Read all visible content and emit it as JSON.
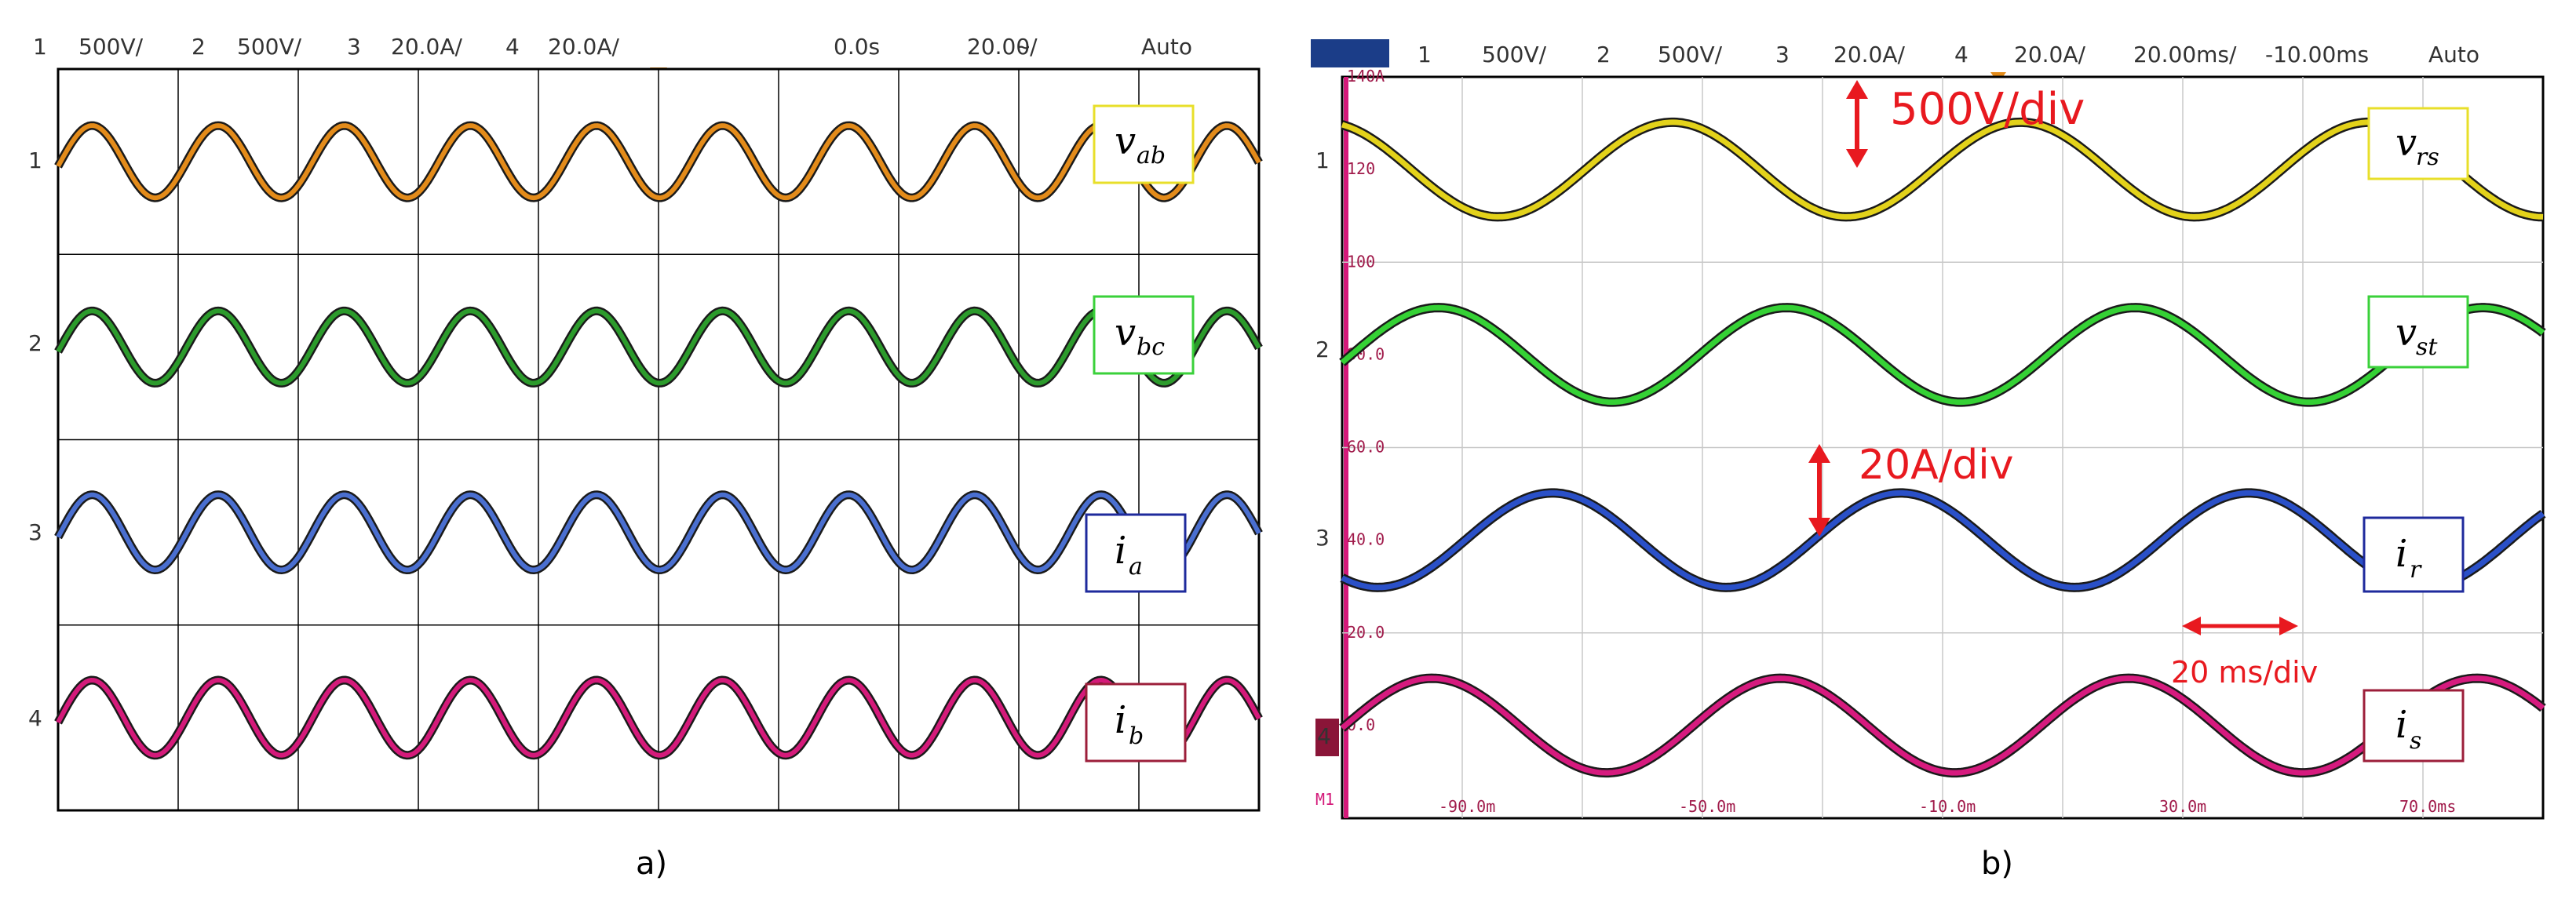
{
  "panel_a": {
    "header": {
      "ch1_num": "1",
      "ch1_scale": "500V/",
      "ch2_num": "2",
      "ch2_scale": "500V/",
      "ch3_num": "3",
      "ch3_scale": "20.0A/",
      "ch4_num": "4",
      "ch4_scale": "20.0A/",
      "time_offset": "0.0s",
      "time_scale": "20.00̴/",
      "trigger_mode": "Auto"
    },
    "markers": {
      "ch1": "1",
      "ch2": "2",
      "ch3": "3",
      "ch4": "4"
    },
    "labels": {
      "l1_main": "v",
      "l1_sub": "ab",
      "l2_main": "v",
      "l2_sub": "bc",
      "l3_main": "i",
      "l3_sub": "a",
      "l4_main": "i",
      "l4_sub": "b"
    },
    "caption": "a)"
  },
  "panel_b": {
    "header": {
      "ch1_num": "1",
      "ch1_scale": "500V/",
      "ch2_num": "2",
      "ch2_scale": "500V/",
      "ch3_num": "3",
      "ch3_scale": "20.0A/",
      "ch4_num": "4",
      "ch4_scale": "20.0A/",
      "time_scale": "20.00ms/",
      "time_offset": "-10.00ms",
      "trigger_mode": "Auto"
    },
    "markers": {
      "ch1": "1",
      "ch2": "2",
      "ch3": "3",
      "ch4": "4",
      "m1": "M1"
    },
    "labels": {
      "l1_main": "v",
      "l1_sub": "rs",
      "l2_main": "v",
      "l2_sub": "st",
      "l3_main": "i",
      "l3_sub": "r",
      "l4_main": "i",
      "l4_sub": "s"
    },
    "annotations": {
      "volt_div": "500V/div",
      "amp_div": "20A/div",
      "time_div": "20 ms/div"
    },
    "caption": "b)"
  },
  "chart_data": [
    {
      "type": "line",
      "panel": "a",
      "x_divisions": 10,
      "y_divisions": 8,
      "grid": true,
      "period_divisions": 1.05,
      "series": [
        {
          "name": "v_ab",
          "color": "#e38b1a",
          "amplitude_div": 0.5
        },
        {
          "name": "v_bc",
          "color": "#2c9b2c",
          "amplitude_div": 0.5
        },
        {
          "name": "i_a",
          "color": "#4a6fd0",
          "amplitude_div": 0.52
        },
        {
          "name": "i_b",
          "color": "#d41a7a",
          "amplitude_div": 0.52
        }
      ]
    },
    {
      "type": "line",
      "panel": "b",
      "xlim": [
        -110,
        90
      ],
      "x_ticks": [
        "-90.0m",
        "-50.0m",
        "-10.0m",
        "30.0m",
        "70.0ms"
      ],
      "x_tick_values": [
        -90,
        -50,
        -10,
        30,
        70
      ],
      "y_ticks": [
        "140A",
        "120",
        "100",
        "80.0",
        "60.0",
        "40.0",
        "20.0",
        "0.0"
      ],
      "y_tick_values": [
        140,
        120,
        100,
        80,
        60,
        40,
        20,
        0
      ],
      "ylim": [
        -20,
        140
      ],
      "grid": true,
      "period_ms": 58,
      "series": [
        {
          "name": "v_rs",
          "color": "#e3d21a",
          "peaks_ms": [
            -55,
            3
          ],
          "amplitude_div": 0.5
        },
        {
          "name": "v_st",
          "color": "#35d135",
          "peaks_ms": [
            -36,
            22
          ],
          "amplitude_div": 0.5
        },
        {
          "name": "i_r",
          "color": "#2a50c8",
          "peaks_ms": [
            -75,
            -17,
            41
          ],
          "amplitude_div": 0.5
        },
        {
          "name": "i_s",
          "color": "#d61a7e",
          "peaks_ms": [
            -37,
            21,
            79
          ],
          "amplitude_div": 0.5
        }
      ]
    }
  ]
}
